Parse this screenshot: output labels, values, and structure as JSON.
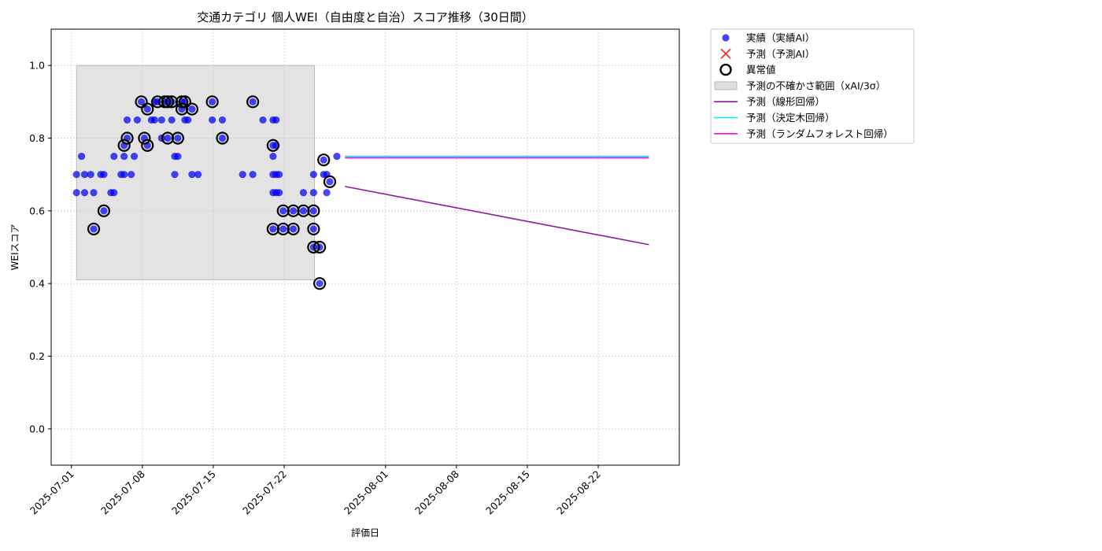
{
  "chart_data": {
    "type": "scatter",
    "title": "交通カテゴリ 個人WEI（自由度と自治）スコア推移（30日間）",
    "xlabel": "評価日",
    "ylabel": "WEIスコア",
    "xlim": [
      "2025-06-29",
      "2025-08-30"
    ],
    "ylim": [
      -0.1,
      1.1
    ],
    "yticks": [
      0.0,
      0.2,
      0.4,
      0.6,
      0.8,
      1.0
    ],
    "ytick_labels": [
      "0.0",
      "0.2",
      "0.4",
      "0.6",
      "0.8",
      "1.0"
    ],
    "xticks": [
      "2025-07-01",
      "2025-07-08",
      "2025-07-15",
      "2025-07-22",
      "2025-08-01",
      "2025-08-08",
      "2025-08-15",
      "2025-08-22"
    ],
    "grid": true,
    "legend_position": "outside-top-right",
    "legend": [
      {
        "label": "実績（実績AI）",
        "kind": "dot",
        "color": "#0000ee"
      },
      {
        "label": "予測（予測AI）",
        "kind": "x",
        "color": "#ff3030"
      },
      {
        "label": "異常値",
        "kind": "ring",
        "color": "#000000"
      },
      {
        "label": "予測の不確かさ範囲（xAI/3σ）",
        "kind": "band",
        "color": "#d0d0d0"
      },
      {
        "label": "予測（線形回帰）",
        "kind": "line",
        "color": "#8b1a9b"
      },
      {
        "label": "予測（決定木回帰）",
        "kind": "line",
        "color": "#00eeee"
      },
      {
        "label": "予測（ランダムフォレスト回帰）",
        "kind": "line",
        "color": "#ff00ff"
      }
    ],
    "uncertainty_band": {
      "x_start": "2025-07-01.5",
      "x_end": "2025-07-25.0",
      "y_low": 0.41,
      "y_high": 1.0
    },
    "series": [
      {
        "name": "実績（実績AI）",
        "color": "#0000ee",
        "points": [
          [
            "2025-07-01.5",
            0.7
          ],
          [
            "2025-07-01.5",
            0.65
          ],
          [
            "2025-07-02.0",
            0.75
          ],
          [
            "2025-07-02.3",
            0.7
          ],
          [
            "2025-07-02.3",
            0.65
          ],
          [
            "2025-07-02.9",
            0.7
          ],
          [
            "2025-07-03.2",
            0.65
          ],
          [
            "2025-07-03.2",
            0.55
          ],
          [
            "2025-07-03.9",
            0.7
          ],
          [
            "2025-07-04.2",
            0.7
          ],
          [
            "2025-07-04.2",
            0.6
          ],
          [
            "2025-07-04.9",
            0.65
          ],
          [
            "2025-07-05.2",
            0.65
          ],
          [
            "2025-07-05.2",
            0.75
          ],
          [
            "2025-07-05.9",
            0.7
          ],
          [
            "2025-07-06.2",
            0.75
          ],
          [
            "2025-07-06.2",
            0.7
          ],
          [
            "2025-07-06.2",
            0.78
          ],
          [
            "2025-07-06.5",
            0.85
          ],
          [
            "2025-07-06.5",
            0.8
          ],
          [
            "2025-07-06.9",
            0.7
          ],
          [
            "2025-07-07.2",
            0.75
          ],
          [
            "2025-07-07.5",
            0.85
          ],
          [
            "2025-07-07.9",
            0.9
          ],
          [
            "2025-07-08.2",
            0.8
          ],
          [
            "2025-07-08.5",
            0.78
          ],
          [
            "2025-07-08.5",
            0.88
          ],
          [
            "2025-07-08.9",
            0.85
          ],
          [
            "2025-07-09.2",
            0.9
          ],
          [
            "2025-07-09.2",
            0.85
          ],
          [
            "2025-07-09.5",
            0.9
          ],
          [
            "2025-07-09.9",
            0.85
          ],
          [
            "2025-07-09.9",
            0.8
          ],
          [
            "2025-07-10.2",
            0.9
          ],
          [
            "2025-07-10.5",
            0.8
          ],
          [
            "2025-07-10.5",
            0.9
          ],
          [
            "2025-07-10.9",
            0.9
          ],
          [
            "2025-07-10.9",
            0.85
          ],
          [
            "2025-07-11.2",
            0.7
          ],
          [
            "2025-07-11.2",
            0.75
          ],
          [
            "2025-07-11.5",
            0.75
          ],
          [
            "2025-07-11.5",
            0.8
          ],
          [
            "2025-07-11.9",
            0.9
          ],
          [
            "2025-07-11.9",
            0.88
          ],
          [
            "2025-07-12.2",
            0.85
          ],
          [
            "2025-07-12.2",
            0.9
          ],
          [
            "2025-07-12.5",
            0.85
          ],
          [
            "2025-07-12.9",
            0.7
          ],
          [
            "2025-07-12.9",
            0.88
          ],
          [
            "2025-07-13.5",
            0.7
          ],
          [
            "2025-07-14.9",
            0.9
          ],
          [
            "2025-07-14.9",
            0.85
          ],
          [
            "2025-07-15.9",
            0.85
          ],
          [
            "2025-07-15.9",
            0.8
          ],
          [
            "2025-07-17.9",
            0.7
          ],
          [
            "2025-07-18.9",
            0.7
          ],
          [
            "2025-07-18.9",
            0.9
          ],
          [
            "2025-07-19.9",
            0.85
          ],
          [
            "2025-07-20.9",
            0.85
          ],
          [
            "2025-07-20.9",
            0.78
          ],
          [
            "2025-07-20.9",
            0.75
          ],
          [
            "2025-07-20.9",
            0.7
          ],
          [
            "2025-07-20.9",
            0.65
          ],
          [
            "2025-07-20.9",
            0.55
          ],
          [
            "2025-07-21.2",
            0.85
          ],
          [
            "2025-07-21.2",
            0.78
          ],
          [
            "2025-07-21.2",
            0.7
          ],
          [
            "2025-07-21.2",
            0.65
          ],
          [
            "2025-07-21.5",
            0.7
          ],
          [
            "2025-07-21.5",
            0.65
          ],
          [
            "2025-07-21.9",
            0.6
          ],
          [
            "2025-07-21.9",
            0.55
          ],
          [
            "2025-07-22.9",
            0.6
          ],
          [
            "2025-07-22.9",
            0.55
          ],
          [
            "2025-07-23.9",
            0.65
          ],
          [
            "2025-07-23.9",
            0.6
          ],
          [
            "2025-07-24.9",
            0.7
          ],
          [
            "2025-07-24.9",
            0.65
          ],
          [
            "2025-07-24.9",
            0.6
          ],
          [
            "2025-07-24.9",
            0.55
          ],
          [
            "2025-07-24.9",
            0.5
          ],
          [
            "2025-07-25.5",
            0.4
          ],
          [
            "2025-07-25.5",
            0.5
          ],
          [
            "2025-07-25.9",
            0.74
          ],
          [
            "2025-07-25.9",
            0.7
          ],
          [
            "2025-07-26.2",
            0.7
          ],
          [
            "2025-07-26.2",
            0.65
          ],
          [
            "2025-07-26.5",
            0.68
          ],
          [
            "2025-07-27.2",
            0.75
          ]
        ]
      }
    ],
    "anomalies": [
      [
        "2025-07-03.2",
        0.55
      ],
      [
        "2025-07-04.2",
        0.6
      ],
      [
        "2025-07-06.2",
        0.78
      ],
      [
        "2025-07-06.5",
        0.8
      ],
      [
        "2025-07-07.9",
        0.9
      ],
      [
        "2025-07-08.2",
        0.8
      ],
      [
        "2025-07-08.5",
        0.78
      ],
      [
        "2025-07-08.5",
        0.88
      ],
      [
        "2025-07-09.5",
        0.9
      ],
      [
        "2025-07-10.2",
        0.9
      ],
      [
        "2025-07-10.5",
        0.8
      ],
      [
        "2025-07-10.5",
        0.9
      ],
      [
        "2025-07-10.9",
        0.9
      ],
      [
        "2025-07-11.5",
        0.8
      ],
      [
        "2025-07-11.9",
        0.9
      ],
      [
        "2025-07-11.9",
        0.88
      ],
      [
        "2025-07-12.2",
        0.9
      ],
      [
        "2025-07-12.9",
        0.88
      ],
      [
        "2025-07-14.9",
        0.9
      ],
      [
        "2025-07-15.9",
        0.8
      ],
      [
        "2025-07-18.9",
        0.9
      ],
      [
        "2025-07-20.9",
        0.78
      ],
      [
        "2025-07-20.9",
        0.55
      ],
      [
        "2025-07-21.9",
        0.6
      ],
      [
        "2025-07-21.9",
        0.55
      ],
      [
        "2025-07-22.9",
        0.6
      ],
      [
        "2025-07-22.9",
        0.55
      ],
      [
        "2025-07-23.9",
        0.6
      ],
      [
        "2025-07-24.9",
        0.6
      ],
      [
        "2025-07-24.9",
        0.55
      ],
      [
        "2025-07-24.9",
        0.5
      ],
      [
        "2025-07-25.5",
        0.4
      ],
      [
        "2025-07-25.5",
        0.5
      ],
      [
        "2025-07-25.9",
        0.74
      ],
      [
        "2025-07-26.5",
        0.68
      ]
    ],
    "predictions": [
      {
        "name": "予測（線形回帰）",
        "color": "#8b1a9b",
        "from": [
          "2025-07-28",
          0.667
        ],
        "to": [
          "2025-08-27",
          0.507
        ]
      },
      {
        "name": "予測（決定木回帰）",
        "color": "#00eeee",
        "from": [
          "2025-07-28",
          0.75
        ],
        "to": [
          "2025-08-27",
          0.75
        ]
      },
      {
        "name": "予測（ランダムフォレスト回帰）",
        "color": "#ff00ff",
        "from": [
          "2025-07-28",
          0.746
        ],
        "to": [
          "2025-08-27",
          0.746
        ]
      }
    ]
  }
}
